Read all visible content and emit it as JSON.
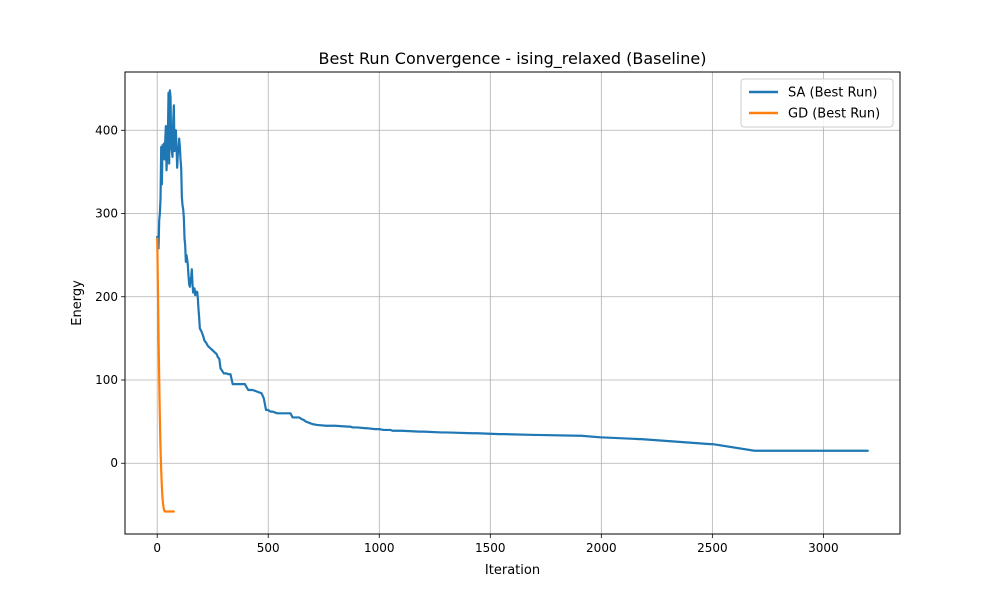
{
  "chart_data": {
    "type": "line",
    "title": "Best Run Convergence - ising_relaxed (Baseline)",
    "xlabel": "Iteration",
    "ylabel": "Energy",
    "xlim": [
      -145,
      3345
    ],
    "ylim": [
      -85,
      470
    ],
    "xticks": [
      0,
      500,
      1000,
      1500,
      2000,
      2500,
      3000
    ],
    "yticks": [
      0,
      100,
      200,
      300,
      400
    ],
    "grid": true,
    "legend_position": "top-right",
    "series": [
      {
        "name": "SA (Best Run)",
        "color": "#1f77b4",
        "x": [
          0,
          3,
          6,
          9,
          12,
          15,
          18,
          21,
          24,
          27,
          30,
          33,
          36,
          39,
          42,
          45,
          48,
          51,
          54,
          57,
          60,
          63,
          66,
          69,
          72,
          75,
          78,
          81,
          84,
          87,
          90,
          93,
          96,
          99,
          102,
          105,
          108,
          111,
          114,
          117,
          120,
          123,
          126,
          129,
          132,
          135,
          138,
          141,
          144,
          147,
          150,
          153,
          156,
          159,
          162,
          165,
          168,
          171,
          174,
          177,
          180,
          183,
          186,
          189,
          192,
          196,
          200,
          204,
          208,
          212,
          216,
          220,
          224,
          228,
          232,
          236,
          240,
          244,
          248,
          252,
          256,
          260,
          264,
          268,
          272,
          280,
          285,
          295,
          300,
          310,
          320,
          330,
          340,
          355,
          370,
          385,
          395,
          410,
          430,
          450,
          470,
          480,
          490,
          500,
          510,
          520,
          530,
          540,
          600,
          610,
          640,
          650,
          660,
          670,
          680,
          690,
          700,
          720,
          760,
          800,
          860,
          870,
          880,
          900,
          940,
          950,
          980,
          1000,
          1020,
          1050,
          1060,
          1100,
          1180,
          1200,
          1280,
          1300,
          1420,
          1440,
          1540,
          1560,
          1700,
          1710,
          1900,
          1910,
          2000,
          2010,
          2170,
          2180,
          2490,
          2500,
          2690,
          2700,
          3200
        ],
        "y": [
          272,
          262,
          258,
          292,
          300,
          318,
          380,
          335,
          382,
          372,
          384,
          365,
          386,
          405,
          352,
          372,
          392,
          445,
          360,
          448,
          440,
          380,
          375,
          368,
          410,
          430,
          375,
          390,
          400,
          380,
          355,
          372,
          375,
          390,
          380,
          365,
          355,
          320,
          310,
          305,
          295,
          270,
          262,
          242,
          250,
          245,
          238,
          225,
          215,
          212,
          220,
          224,
          233,
          215,
          205,
          208,
          210,
          202,
          206,
          203,
          206,
          198,
          185,
          175,
          162,
          160,
          158,
          155,
          152,
          148,
          146,
          145,
          143,
          141,
          140,
          139,
          138,
          137,
          136,
          135,
          134,
          133,
          132,
          131,
          128,
          125,
          114,
          110,
          108,
          108,
          107,
          107,
          95,
          95,
          95,
          95,
          95,
          88,
          88,
          86,
          84,
          78,
          64,
          64,
          62,
          62,
          61,
          60,
          60,
          55,
          55,
          53,
          52,
          50,
          49,
          48,
          47,
          46,
          45,
          45,
          44,
          44,
          43,
          43,
          42,
          42,
          41,
          41,
          40,
          40,
          39,
          39,
          38,
          38,
          37,
          37,
          36,
          36,
          35,
          35,
          34,
          34,
          33,
          33,
          31,
          31,
          29,
          29,
          23,
          23,
          15,
          15,
          15
        ]
      },
      {
        "name": "GD (Best Run)",
        "color": "#ff7f0e",
        "x": [
          0,
          1,
          2,
          4,
          6,
          8,
          10,
          12,
          14,
          16,
          18,
          20,
          22,
          24,
          26,
          28,
          30,
          32,
          35,
          40,
          50,
          60,
          70,
          75
        ],
        "y": [
          270,
          255,
          235,
          195,
          155,
          118,
          85,
          55,
          28,
          8,
          -8,
          -22,
          -33,
          -42,
          -48,
          -52,
          -55,
          -57,
          -58,
          -58,
          -58,
          -58,
          -58,
          -58
        ]
      }
    ]
  }
}
